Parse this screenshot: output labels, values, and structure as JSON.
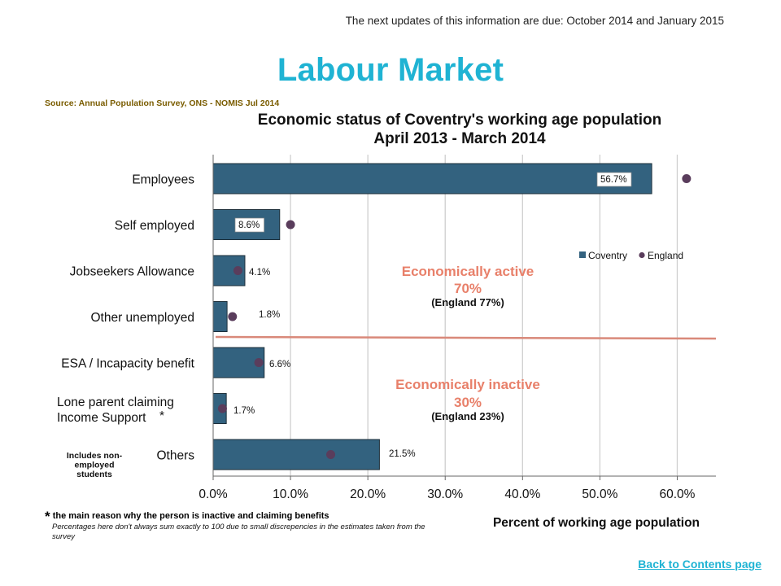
{
  "header": {
    "update_note": "The next updates of this information are due: October 2014 and January 2015",
    "page_title": "Labour Market",
    "source": "Source: Annual Population Survey, ONS - NOMIS Jul 2014"
  },
  "chart_data": {
    "type": "bar",
    "orientation": "horizontal",
    "title_lines": [
      "Economic status of Coventry's working age population",
      "April 2013 - March 2014"
    ],
    "xlabel": "Percent of working age population",
    "ylabel": "",
    "xlim": [
      0,
      65
    ],
    "x_ticks": [
      0,
      10,
      20,
      30,
      40,
      50,
      60
    ],
    "x_tick_labels": [
      "0.0%",
      "10.0%",
      "20.0%",
      "30.0%",
      "40.0%",
      "50.0%",
      "60.0%"
    ],
    "grid": "vertical",
    "legend_position": "right",
    "categories": [
      {
        "label_lines": [
          "Employees"
        ],
        "marker": ""
      },
      {
        "label_lines": [
          "Self employed"
        ],
        "marker": ""
      },
      {
        "label_lines": [
          "Jobseekers Allowance"
        ],
        "marker": ""
      },
      {
        "label_lines": [
          "Other unemployed"
        ],
        "marker": ""
      },
      {
        "label_lines": [
          "ESA / Incapacity benefit"
        ],
        "marker": ""
      },
      {
        "label_lines": [
          "Lone parent claiming",
          "Income Support"
        ],
        "marker": "*"
      },
      {
        "label_lines": [
          "Others"
        ],
        "marker": ""
      }
    ],
    "series": [
      {
        "name": "Coventry",
        "kind": "bar",
        "color": "#33627f",
        "values": [
          56.7,
          8.6,
          4.1,
          1.8,
          6.6,
          1.7,
          21.5
        ],
        "data_labels": [
          "56.7%",
          "8.6%",
          "4.1%",
          "1.8%",
          "6.6%",
          "1.7%",
          "21.5%"
        ]
      },
      {
        "name": "England",
        "kind": "marker",
        "color": "#5a3d5c",
        "values": [
          61.2,
          10.0,
          3.2,
          2.5,
          5.9,
          1.2,
          15.2
        ]
      }
    ],
    "annotations": {
      "active": {
        "head": "Economically active",
        "value": "70%",
        "sub": "(England 77%)"
      },
      "inactive": {
        "head": "Economically inactive",
        "value": "30%",
        "sub": "(England 23%)"
      },
      "divider_color": "#d9897a",
      "others_note": [
        "Includes non-",
        "employed",
        "students"
      ]
    }
  },
  "footnotes": {
    "star": "*",
    "main_reason": "the main reason why the person is inactive and claiming benefits",
    "percentages": "Percentages here don't always sum exactly to 100 due to small discrepencies in the estimates taken from the survey"
  },
  "nav": {
    "back_link": "Back to Contents page"
  }
}
